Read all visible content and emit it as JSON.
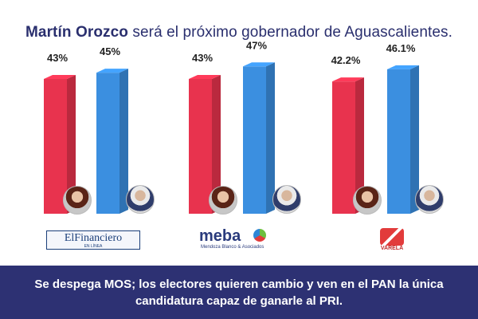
{
  "title": {
    "name": "Martín Orozco",
    "rest": " será el próximo gobernador de Aguascalientes."
  },
  "chart_data": [
    {
      "type": "bar",
      "categories": [
        "",
        ""
      ],
      "values": [
        43,
        45
      ],
      "labels": [
        "43%",
        "45%"
      ],
      "colors": [
        "#e8334e",
        "#3b8fe0"
      ],
      "ylim": [
        0,
        50
      ],
      "title": "",
      "xlabel": "",
      "ylabel": "",
      "grid": false,
      "source": "ElFinanciero"
    },
    {
      "type": "bar",
      "categories": [
        "",
        ""
      ],
      "values": [
        43,
        47
      ],
      "labels": [
        "43%",
        "47%"
      ],
      "colors": [
        "#e8334e",
        "#3b8fe0"
      ],
      "ylim": [
        0,
        50
      ],
      "title": "",
      "xlabel": "",
      "ylabel": "",
      "grid": false,
      "source": "meba"
    },
    {
      "type": "bar",
      "categories": [
        "",
        ""
      ],
      "values": [
        42.2,
        46.1
      ],
      "labels": [
        "42.2%",
        "46.1%"
      ],
      "colors": [
        "#e8334e",
        "#3b8fe0"
      ],
      "ylim": [
        0,
        50
      ],
      "title": "",
      "xlabel": "",
      "ylabel": "",
      "grid": false,
      "source": "VARELA"
    }
  ],
  "logos": {
    "financiero": "ElFinanciero",
    "financiero_sub": "EN LÍNEA",
    "meba": "meba",
    "meba_sub": "Mendoza Blanco & Asociados",
    "varela": "VARELA"
  },
  "banner": "Se despega MOS; los electores quieren cambio y ven en el PAN la única candidatura capaz de ganarle al PRI."
}
